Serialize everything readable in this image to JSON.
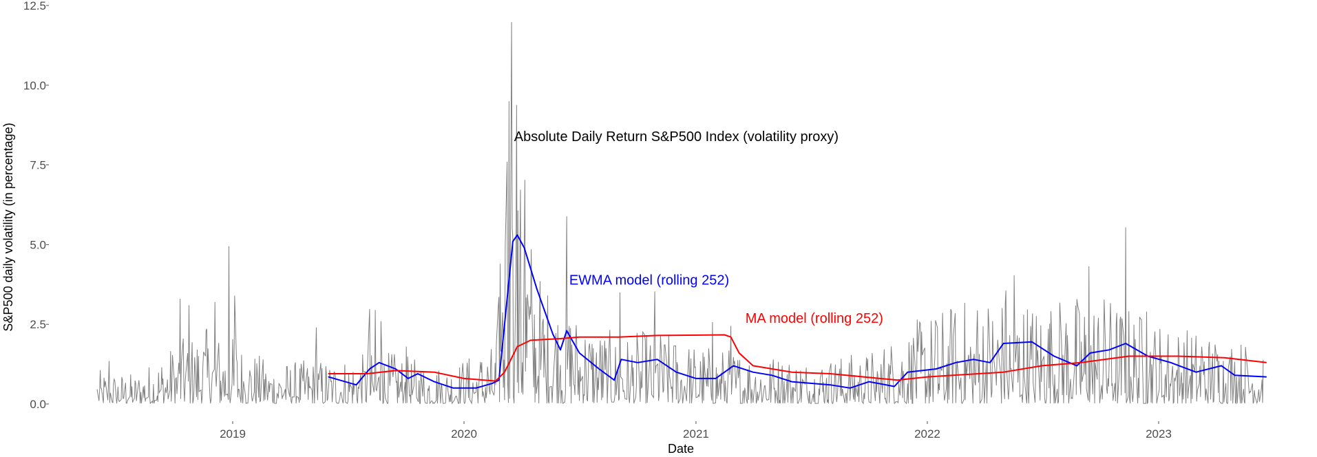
{
  "chart_data": {
    "type": "line",
    "xlabel": "Date",
    "ylabel": "S&P500 daily volatility (in percentage)",
    "ylim": [
      0,
      12.5
    ],
    "xlim": [
      "2018-06-01",
      "2023-06-30"
    ],
    "x_ticks": [
      "2019-01-01",
      "2020-01-01",
      "2021-01-01",
      "2022-01-01",
      "2023-01-01"
    ],
    "x_tick_labels": [
      "2019",
      "2020",
      "2021",
      "2022",
      "2023"
    ],
    "y_ticks": [
      0,
      2.5,
      5,
      7.5,
      10,
      12.5
    ],
    "y_tick_labels": [
      "0.0",
      "2.5",
      "5.0",
      "7.5",
      "10.0",
      "12.5"
    ],
    "grid": false,
    "annotations": [
      {
        "text": "Absolute Daily Return S&P500 Index (volatility proxy)",
        "color": "#000000",
        "x": "2020-03-20",
        "y": 8.4
      },
      {
        "text": "EWMA model (rolling 252)",
        "color": "#0000ff",
        "x": "2020-06-15",
        "y": 3.9
      },
      {
        "text": "MA model (rolling 252)",
        "color": "#ff0000",
        "x": "2021-03-20",
        "y": 2.7
      }
    ],
    "series": [
      {
        "name": "Absolute Daily Return S&P500 Index (volatility proxy)",
        "color": "#808080",
        "note_generated": "dense daily series approximated by anchor envelope",
        "baseline_points": [
          [
            "2018-06-01",
            0.45
          ],
          [
            "2018-08-01",
            0.4
          ],
          [
            "2018-10-01",
            0.8
          ],
          [
            "2018-11-15",
            1.0
          ],
          [
            "2019-01-01",
            0.9
          ],
          [
            "2019-03-01",
            0.55
          ],
          [
            "2019-06-01",
            0.6
          ],
          [
            "2019-09-01",
            0.7
          ],
          [
            "2019-12-01",
            0.5
          ],
          [
            "2020-02-20",
            0.8
          ],
          [
            "2020-03-10",
            3.5
          ],
          [
            "2020-04-01",
            3.0
          ],
          [
            "2020-05-01",
            1.7
          ],
          [
            "2020-06-15",
            1.3
          ],
          [
            "2020-09-01",
            0.9
          ],
          [
            "2020-11-01",
            1.0
          ],
          [
            "2021-01-01",
            0.8
          ],
          [
            "2021-04-01",
            0.7
          ],
          [
            "2021-07-01",
            0.6
          ],
          [
            "2021-10-01",
            0.7
          ],
          [
            "2022-01-01",
            1.2
          ],
          [
            "2022-04-01",
            1.5
          ],
          [
            "2022-07-01",
            1.4
          ],
          [
            "2022-10-01",
            1.5
          ],
          [
            "2023-01-01",
            1.1
          ],
          [
            "2023-03-01",
            1.0
          ],
          [
            "2023-06-15",
            0.8
          ]
        ],
        "spikes": [
          [
            "2018-06-20",
            1.35
          ],
          [
            "2018-10-10",
            3.3
          ],
          [
            "2018-10-24",
            3.1
          ],
          [
            "2018-11-20",
            2.3
          ],
          [
            "2018-12-04",
            3.2
          ],
          [
            "2018-12-26",
            4.95
          ],
          [
            "2019-01-04",
            3.4
          ],
          [
            "2019-05-13",
            2.4
          ],
          [
            "2019-08-05",
            2.98
          ],
          [
            "2019-08-14",
            2.95
          ],
          [
            "2019-08-23",
            2.6
          ],
          [
            "2019-10-02",
            1.8
          ],
          [
            "2020-02-27",
            4.4
          ],
          [
            "2020-03-09",
            7.6
          ],
          [
            "2020-03-12",
            9.5
          ],
          [
            "2020-03-16",
            11.98
          ],
          [
            "2020-03-18",
            5.2
          ],
          [
            "2020-03-24",
            9.38
          ],
          [
            "2020-04-06",
            7.03
          ],
          [
            "2020-04-14",
            3.06
          ],
          [
            "2020-04-29",
            2.66
          ],
          [
            "2020-06-11",
            5.89
          ],
          [
            "2020-09-03",
            3.5
          ],
          [
            "2020-10-28",
            3.53
          ],
          [
            "2021-01-27",
            2.57
          ],
          [
            "2021-02-25",
            2.45
          ],
          [
            "2022-05-05",
            3.56
          ],
          [
            "2022-05-18",
            4.04
          ],
          [
            "2022-09-13",
            4.32
          ],
          [
            "2022-11-10",
            5.54
          ],
          [
            "2022-12-13",
            2.9
          ],
          [
            "2023-03-10",
            1.8
          ]
        ]
      },
      {
        "name": "EWMA model (rolling 252)",
        "color": "#0000ff",
        "points": [
          [
            "2019-06-01",
            0.85
          ],
          [
            "2019-07-15",
            0.6
          ],
          [
            "2019-08-05",
            1.1
          ],
          [
            "2019-08-20",
            1.3
          ],
          [
            "2019-09-15",
            1.1
          ],
          [
            "2019-10-05",
            0.8
          ],
          [
            "2019-10-20",
            0.95
          ],
          [
            "2019-11-15",
            0.7
          ],
          [
            "2019-12-15",
            0.5
          ],
          [
            "2020-01-20",
            0.5
          ],
          [
            "2020-02-15",
            0.65
          ],
          [
            "2020-02-25",
            0.75
          ],
          [
            "2020-03-05",
            2.5
          ],
          [
            "2020-03-18",
            5.1
          ],
          [
            "2020-03-25",
            5.3
          ],
          [
            "2020-04-05",
            4.9
          ],
          [
            "2020-04-25",
            3.6
          ],
          [
            "2020-05-20",
            2.2
          ],
          [
            "2020-06-01",
            1.7
          ],
          [
            "2020-06-11",
            2.3
          ],
          [
            "2020-07-01",
            1.6
          ],
          [
            "2020-08-01",
            1.1
          ],
          [
            "2020-08-25",
            0.75
          ],
          [
            "2020-09-05",
            1.4
          ],
          [
            "2020-10-01",
            1.3
          ],
          [
            "2020-11-01",
            1.4
          ],
          [
            "2020-12-01",
            1.0
          ],
          [
            "2021-01-01",
            0.8
          ],
          [
            "2021-02-01",
            0.8
          ],
          [
            "2021-03-01",
            1.2
          ],
          [
            "2021-04-01",
            1.0
          ],
          [
            "2021-05-01",
            0.9
          ],
          [
            "2021-06-01",
            0.7
          ],
          [
            "2021-07-01",
            0.65
          ],
          [
            "2021-08-01",
            0.6
          ],
          [
            "2021-09-01",
            0.5
          ],
          [
            "2021-10-01",
            0.7
          ],
          [
            "2021-11-10",
            0.55
          ],
          [
            "2021-12-01",
            1.0
          ],
          [
            "2022-01-15",
            1.1
          ],
          [
            "2022-02-15",
            1.3
          ],
          [
            "2022-03-15",
            1.4
          ],
          [
            "2022-04-10",
            1.3
          ],
          [
            "2022-05-01",
            1.9
          ],
          [
            "2022-06-15",
            1.95
          ],
          [
            "2022-07-20",
            1.5
          ],
          [
            "2022-08-25",
            1.2
          ],
          [
            "2022-09-15",
            1.6
          ],
          [
            "2022-10-15",
            1.7
          ],
          [
            "2022-11-10",
            1.9
          ],
          [
            "2022-12-15",
            1.5
          ],
          [
            "2023-01-20",
            1.3
          ],
          [
            "2023-03-01",
            1.0
          ],
          [
            "2023-04-10",
            1.2
          ],
          [
            "2023-05-01",
            0.9
          ],
          [
            "2023-06-20",
            0.85
          ]
        ]
      },
      {
        "name": "MA model (rolling 252)",
        "color": "#ff0000",
        "points": [
          [
            "2019-06-01",
            0.95
          ],
          [
            "2019-08-01",
            0.95
          ],
          [
            "2019-09-15",
            1.05
          ],
          [
            "2019-11-15",
            1.0
          ],
          [
            "2020-01-01",
            0.8
          ],
          [
            "2020-02-20",
            0.72
          ],
          [
            "2020-03-05",
            1.0
          ],
          [
            "2020-03-25",
            1.8
          ],
          [
            "2020-04-15",
            2.0
          ],
          [
            "2020-06-01",
            2.05
          ],
          [
            "2020-07-01",
            2.1
          ],
          [
            "2020-09-01",
            2.1
          ],
          [
            "2020-11-01",
            2.15
          ],
          [
            "2021-02-15",
            2.17
          ],
          [
            "2021-02-25",
            2.1
          ],
          [
            "2021-03-10",
            1.6
          ],
          [
            "2021-04-01",
            1.2
          ],
          [
            "2021-06-01",
            1.0
          ],
          [
            "2021-08-01",
            0.95
          ],
          [
            "2021-11-15",
            0.75
          ],
          [
            "2022-01-01",
            0.85
          ],
          [
            "2022-05-01",
            1.0
          ],
          [
            "2022-07-01",
            1.2
          ],
          [
            "2022-09-01",
            1.3
          ],
          [
            "2022-11-15",
            1.5
          ],
          [
            "2023-02-01",
            1.5
          ],
          [
            "2023-04-15",
            1.45
          ],
          [
            "2023-06-20",
            1.3
          ]
        ]
      }
    ]
  }
}
